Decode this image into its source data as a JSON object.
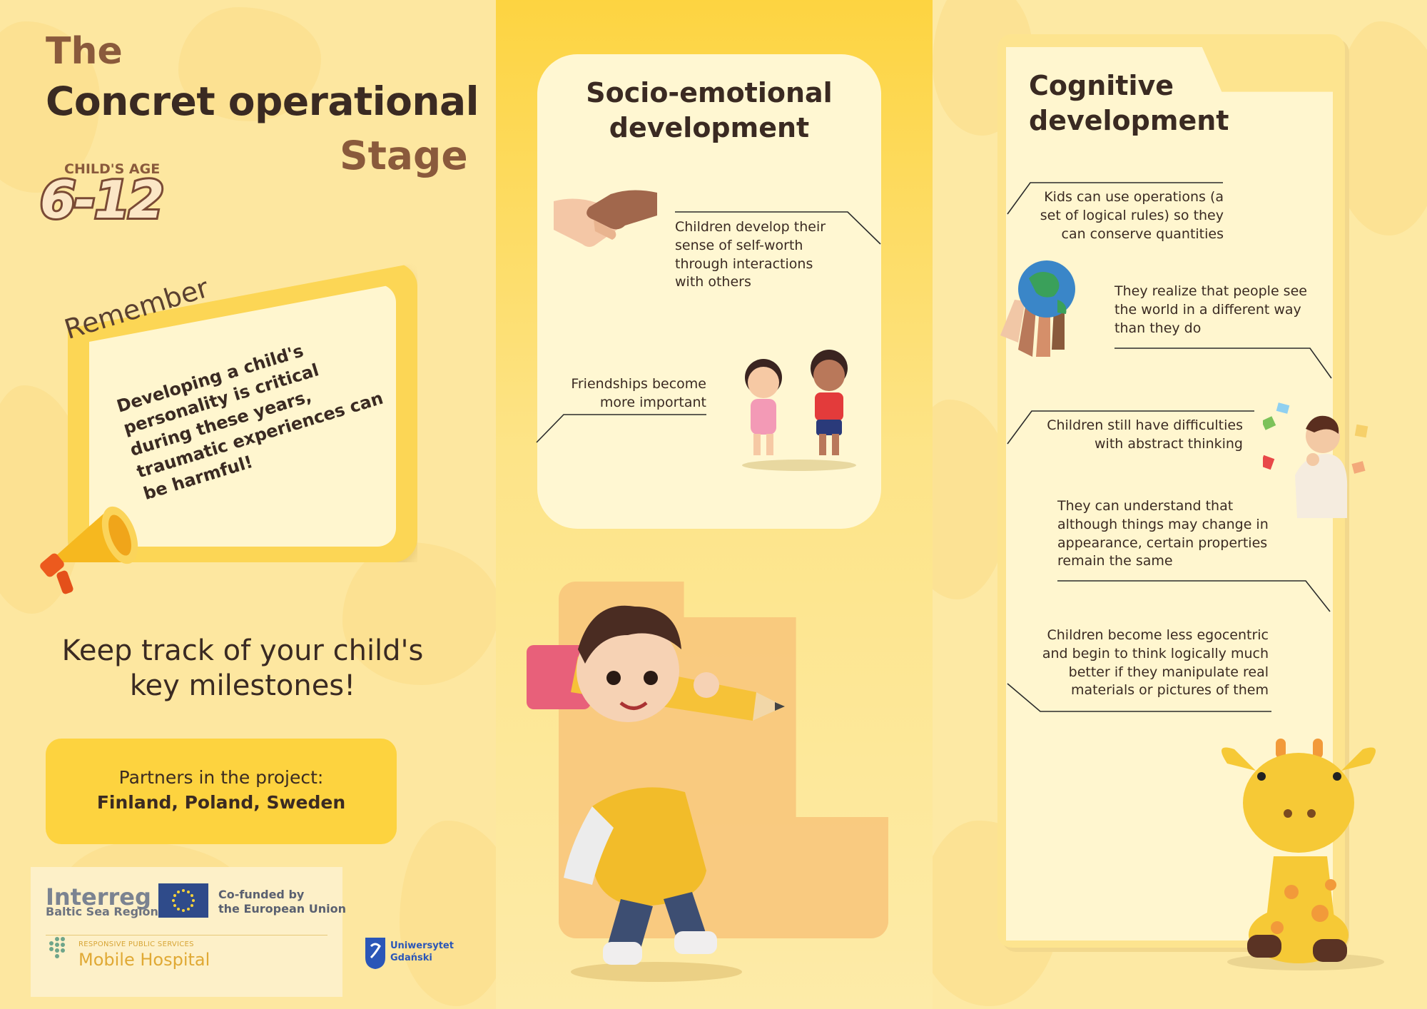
{
  "left": {
    "title_the": "The",
    "title_main": "Concret operational",
    "title_stage": "Stage",
    "age_label": "CHILD'S AGE",
    "age_value": "6-12",
    "remember_title": "Remember",
    "remember_text": "Developing a child's personality is critical during these years, traumatic experiences can be harmful!",
    "keep_track_1": "Keep track of your child's",
    "keep_track_2": "key milestones!",
    "partners_label": "Partners in the project:",
    "partners_countries": "Finland, Poland, Sweden",
    "logos": {
      "interreg": "Interreg",
      "interreg_sub": "Baltic Sea Region",
      "cofunded_1": "Co-funded by",
      "cofunded_2": "the European Union",
      "rps": "RESPONSIVE PUBLIC SERVICES",
      "mobile_hospital": "Mobile Hospital",
      "ug_1": "Uniwersytet",
      "ug_2": "Gdański"
    }
  },
  "middle": {
    "title_1": "Socio-emotional",
    "title_2": "development",
    "point_1": "Children develop their sense of self-worth through interactions with others",
    "point_2": "Friendships become more important"
  },
  "right": {
    "title_1": "Cognitive",
    "title_2": "development",
    "points": [
      "Kids can use operations (a set of logical rules) so they can conserve quantities",
      "They realize that people see the world in a different way than they do",
      "Children still have difficulties with abstract thinking",
      "They can understand that although things may change in appearance, certain properties remain the same",
      "Children become less egocentric and begin to think logically much better if they manipulate real materials or pictures of them"
    ]
  },
  "colors": {
    "background": "#fde9a6",
    "accent_yellow": "#fdd33f",
    "card_cream": "#fff7d2",
    "text_dark": "#3a2a22",
    "text_brown": "#8a5a3c"
  },
  "icons": [
    "megaphone-icon",
    "handshake-icon",
    "kids-icon",
    "boy-with-pencil-icon",
    "earth-hands-icon",
    "thinking-child-icon",
    "giraffe-icon",
    "eu-flag-icon",
    "mobile-hospital-dots-icon",
    "ug-shield-icon"
  ]
}
